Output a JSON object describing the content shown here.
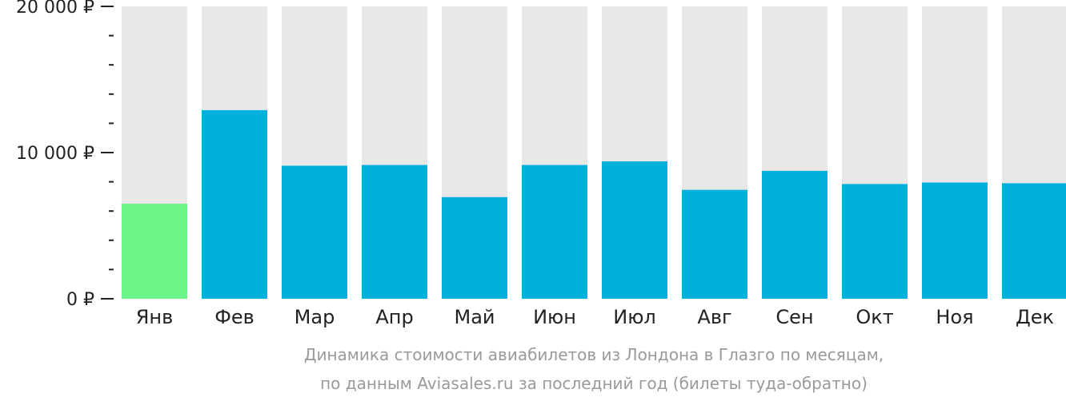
{
  "chart_data": {
    "type": "bar",
    "categories": [
      "Янв",
      "Фев",
      "Мар",
      "Апр",
      "Май",
      "Июн",
      "Июл",
      "Авг",
      "Сен",
      "Окт",
      "Ноя",
      "Дек"
    ],
    "values": [
      6500,
      12900,
      9100,
      9150,
      6950,
      9150,
      9400,
      7450,
      8750,
      7850,
      7950,
      7900
    ],
    "ylim": [
      0,
      20000
    ],
    "y_ticks": [
      {
        "value": 0,
        "label": "0 ₽"
      },
      {
        "value": 10000,
        "label": "10 000 ₽"
      },
      {
        "value": 20000,
        "label": "20 000 ₽"
      }
    ],
    "y_minor_step": 2000,
    "highlight_index": 0,
    "colors": {
      "bar": "#00b0dc",
      "highlight": "#6cf588",
      "background_bar": "#e8e8e8",
      "axis": "#222222"
    },
    "caption": [
      "Динамика стоимости авиабилетов из Лондона в Глазго по месяцам,",
      "по данным Aviasales.ru за последний год (билеты туда-обратно)"
    ]
  }
}
